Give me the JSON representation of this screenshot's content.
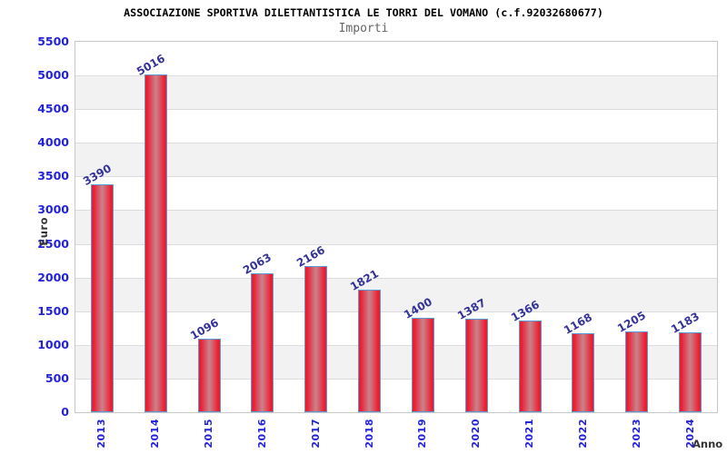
{
  "page": {
    "background": "#ffffff"
  },
  "chart_data": {
    "type": "bar",
    "title": "ASSOCIAZIONE SPORTIVA DILETTANTISTICA LE TORRI DEL VOMANO (c.f.92032680677)",
    "subtitle": "Importi",
    "xlabel": "Anno",
    "ylabel": "Euro",
    "categories": [
      "2013",
      "2014",
      "2015",
      "2016",
      "2017",
      "2018",
      "2019",
      "2020",
      "2021",
      "2022",
      "2023",
      "2024"
    ],
    "values": [
      3390,
      5016,
      1096,
      2063,
      2166,
      1821,
      1400,
      1387,
      1366,
      1168,
      1205,
      1183
    ],
    "ylim": [
      0,
      5500
    ],
    "ytick_step": 500,
    "grid": true,
    "legend": "none",
    "band_pattern": "alternating horizontal bands, white and light gray, starting white at bottom",
    "colors": {
      "bar_fill_edge": "#ed1b2e",
      "bar_fill_center": "#c9838d",
      "bar_border": "#5b9bd5",
      "value_label": "#333399",
      "axis_tick_label": "#2222dd",
      "title": "#000000",
      "subtitle": "#666666",
      "axis_name_label": "#333333",
      "gridline": "#dcdcdc",
      "band_alt": "#f2f2f2",
      "plot_border": "#c8c8c8"
    }
  }
}
